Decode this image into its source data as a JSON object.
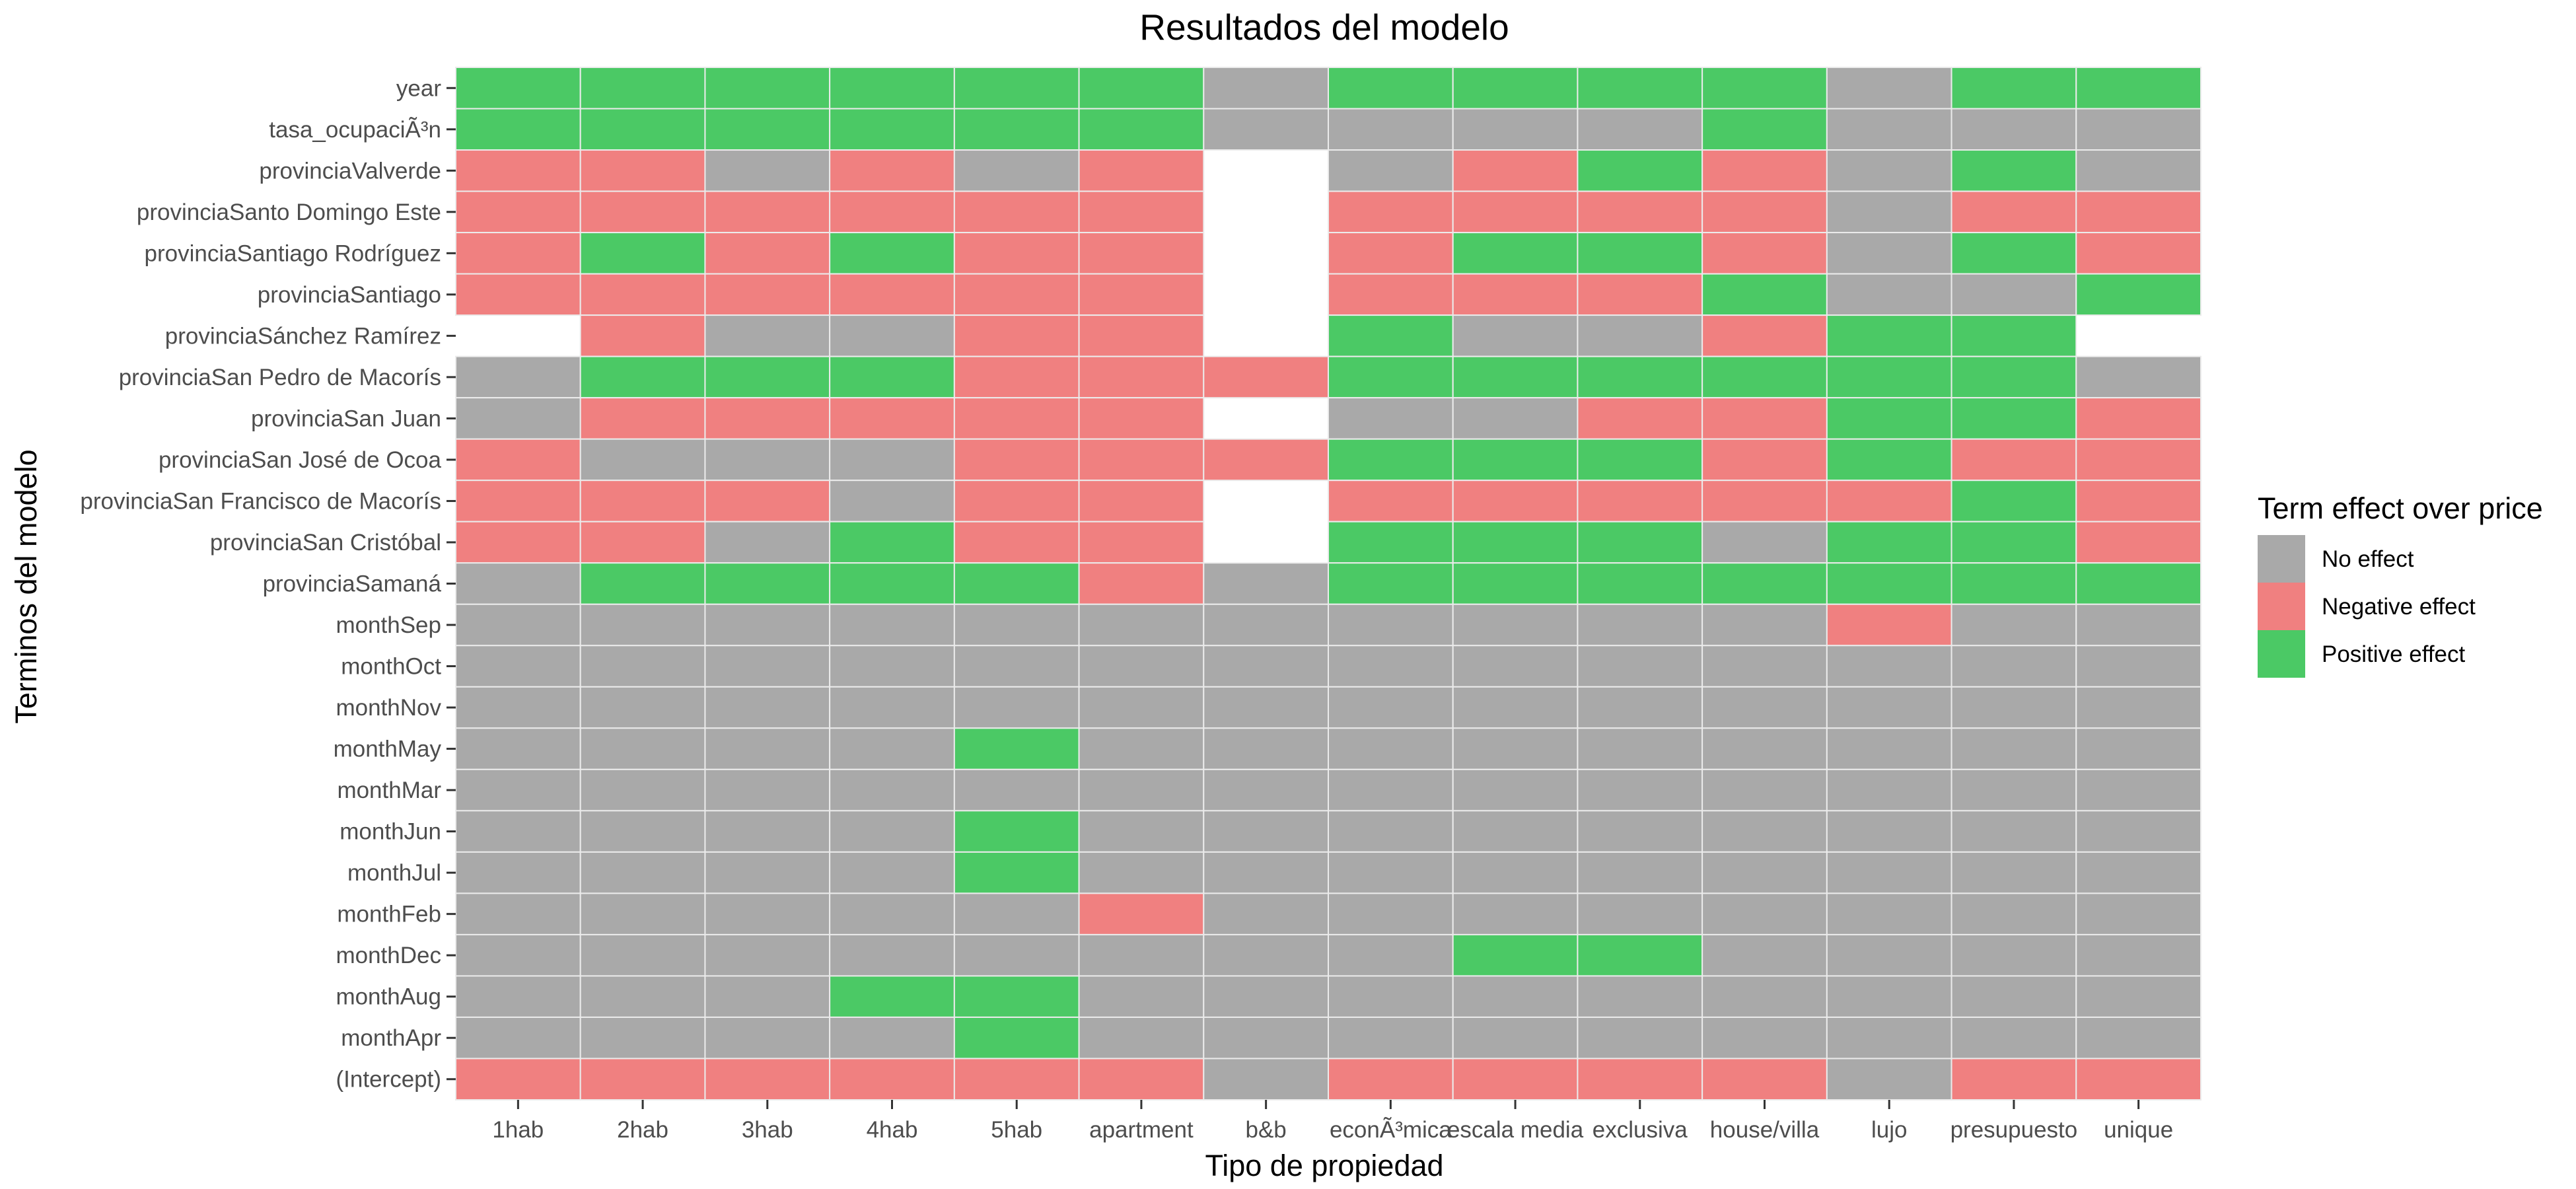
{
  "chart_data": {
    "type": "heatmap",
    "title": "Resultados del modelo",
    "xlabel": "Tipo de propiedad",
    "ylabel": "Terminos del modelo",
    "x_categories": [
      "1hab",
      "2hab",
      "3hab",
      "4hab",
      "5hab",
      "apartment",
      "b&b",
      "econÃ³mica",
      "escala media",
      "exclusiva",
      "house/villa",
      "lujo",
      "presupuesto",
      "unique"
    ],
    "y_categories": [
      "year",
      "tasa_ocupaciÃ³n",
      "provinciaValverde",
      "provinciaSanto Domingo Este",
      "provinciaSantiago Rodríguez",
      "provinciaSantiago",
      "provinciaSánchez Ramírez",
      "provinciaSan Pedro de Macorís",
      "provinciaSan Juan",
      "provinciaSan José de Ocoa",
      "provinciaSan Francisco de Macorís",
      "provinciaSan Cristóbal",
      "provinciaSamaná",
      "monthSep",
      "monthOct",
      "monthNov",
      "monthMay",
      "monthMar",
      "monthJun",
      "monthJul",
      "monthFeb",
      "monthDec",
      "monthAug",
      "monthApr",
      "(Intercept)"
    ],
    "values": [
      [
        "P",
        "P",
        "P",
        "P",
        "P",
        "P",
        "N0",
        "P",
        "P",
        "P",
        "P",
        "N0",
        "P",
        "P"
      ],
      [
        "P",
        "P",
        "P",
        "P",
        "P",
        "P",
        "N0",
        "N0",
        "N0",
        "N0",
        "P",
        "N0",
        "N0",
        "N0"
      ],
      [
        "-",
        "-",
        "N0",
        "-",
        "N0",
        "-",
        null,
        "N0",
        "-",
        "P",
        "-",
        "N0",
        "P",
        "N0"
      ],
      [
        "-",
        "-",
        "-",
        "-",
        "-",
        "-",
        null,
        "-",
        "-",
        "-",
        "-",
        "N0",
        "-",
        "-"
      ],
      [
        "-",
        "P",
        "-",
        "P",
        "-",
        "-",
        null,
        "-",
        "P",
        "P",
        "-",
        "N0",
        "P",
        "-"
      ],
      [
        "-",
        "-",
        "-",
        "-",
        "-",
        "-",
        null,
        "-",
        "-",
        "-",
        "P",
        "N0",
        "N0",
        "P"
      ],
      [
        null,
        "-",
        "N0",
        "N0",
        "-",
        "-",
        null,
        "P",
        "N0",
        "N0",
        "-",
        "P",
        "P",
        null
      ],
      [
        "N0",
        "P",
        "P",
        "P",
        "-",
        "-",
        "-",
        "P",
        "P",
        "P",
        "P",
        "P",
        "P",
        "N0"
      ],
      [
        "N0",
        "-",
        "-",
        "-",
        "-",
        "-",
        null,
        "N0",
        "N0",
        "-",
        "-",
        "P",
        "P",
        "-"
      ],
      [
        "-",
        "N0",
        "N0",
        "N0",
        "-",
        "-",
        "-",
        "P",
        "P",
        "P",
        "-",
        "P",
        "-",
        "-"
      ],
      [
        "-",
        "-",
        "-",
        "N0",
        "-",
        "-",
        null,
        "-",
        "-",
        "-",
        "-",
        "-",
        "P",
        "-"
      ],
      [
        "-",
        "-",
        "N0",
        "P",
        "-",
        "-",
        null,
        "P",
        "P",
        "P",
        "N0",
        "P",
        "P",
        "-"
      ],
      [
        "N0",
        "P",
        "P",
        "P",
        "P",
        "-",
        "N0",
        "P",
        "P",
        "P",
        "P",
        "P",
        "P",
        "P"
      ],
      [
        "N0",
        "N0",
        "N0",
        "N0",
        "N0",
        "N0",
        "N0",
        "N0",
        "N0",
        "N0",
        "N0",
        "-",
        "N0",
        "N0"
      ],
      [
        "N0",
        "N0",
        "N0",
        "N0",
        "N0",
        "N0",
        "N0",
        "N0",
        "N0",
        "N0",
        "N0",
        "N0",
        "N0",
        "N0"
      ],
      [
        "N0",
        "N0",
        "N0",
        "N0",
        "N0",
        "N0",
        "N0",
        "N0",
        "N0",
        "N0",
        "N0",
        "N0",
        "N0",
        "N0"
      ],
      [
        "N0",
        "N0",
        "N0",
        "N0",
        "P",
        "N0",
        "N0",
        "N0",
        "N0",
        "N0",
        "N0",
        "N0",
        "N0",
        "N0"
      ],
      [
        "N0",
        "N0",
        "N0",
        "N0",
        "N0",
        "N0",
        "N0",
        "N0",
        "N0",
        "N0",
        "N0",
        "N0",
        "N0",
        "N0"
      ],
      [
        "N0",
        "N0",
        "N0",
        "N0",
        "P",
        "N0",
        "N0",
        "N0",
        "N0",
        "N0",
        "N0",
        "N0",
        "N0",
        "N0"
      ],
      [
        "N0",
        "N0",
        "N0",
        "N0",
        "P",
        "N0",
        "N0",
        "N0",
        "N0",
        "N0",
        "N0",
        "N0",
        "N0",
        "N0"
      ],
      [
        "N0",
        "N0",
        "N0",
        "N0",
        "N0",
        "-",
        "N0",
        "N0",
        "N0",
        "N0",
        "N0",
        "N0",
        "N0",
        "N0"
      ],
      [
        "N0",
        "N0",
        "N0",
        "N0",
        "N0",
        "N0",
        "N0",
        "N0",
        "P",
        "P",
        "N0",
        "N0",
        "N0",
        "N0"
      ],
      [
        "N0",
        "N0",
        "N0",
        "P",
        "P",
        "N0",
        "N0",
        "N0",
        "N0",
        "N0",
        "N0",
        "N0",
        "N0",
        "N0"
      ],
      [
        "N0",
        "N0",
        "N0",
        "N0",
        "P",
        "N0",
        "N0",
        "N0",
        "N0",
        "N0",
        "N0",
        "N0",
        "N0",
        "N0"
      ],
      [
        "-",
        "-",
        "-",
        "-",
        "-",
        "-",
        "N0",
        "-",
        "-",
        "-",
        "-",
        "N0",
        "-",
        "-"
      ]
    ],
    "legend": {
      "title": "Term effect over price",
      "placement": "right",
      "entries": [
        {
          "key": "N0",
          "label": "No effect",
          "color": "#a9a9a9"
        },
        {
          "key": "-",
          "label": "Negative effect",
          "color": "#f08080"
        },
        {
          "key": "P",
          "label": "Positive effect",
          "color": "#4bc965"
        }
      ]
    },
    "empty_cell_meaning": "missing"
  }
}
